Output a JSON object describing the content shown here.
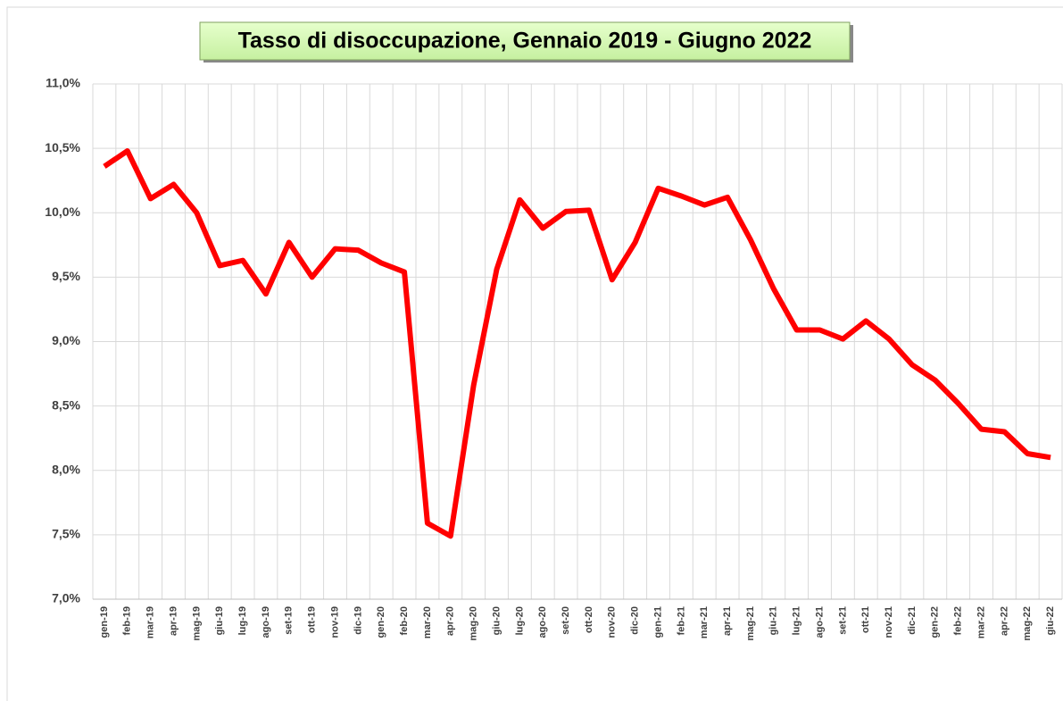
{
  "chart_data": {
    "type": "line",
    "title": "Tasso di disoccupazione, Gennaio 2019 - Giugno 2022",
    "categories": [
      "gen-19",
      "feb-19",
      "mar-19",
      "apr-19",
      "mag-19",
      "giu-19",
      "lug-19",
      "ago-19",
      "set-19",
      "ott-19",
      "nov-19",
      "dic-19",
      "gen-20",
      "feb-20",
      "mar-20",
      "apr-20",
      "mag-20",
      "giu-20",
      "lug-20",
      "ago-20",
      "set-20",
      "ott-20",
      "nov-20",
      "dic-20",
      "gen-21",
      "feb-21",
      "mar-21",
      "apr-21",
      "mag-21",
      "giu-21",
      "lug-21",
      "ago-21",
      "set-21",
      "ott-21",
      "nov-21",
      "dic-21",
      "gen-22",
      "feb-22",
      "mar-22",
      "apr-22",
      "mag-22",
      "giu-22"
    ],
    "series": [
      {
        "color": "#ff0000",
        "values": [
          10.36,
          10.48,
          10.11,
          10.22,
          10.0,
          9.59,
          9.63,
          9.37,
          9.77,
          9.5,
          9.72,
          9.71,
          9.61,
          9.54,
          7.59,
          7.49,
          8.66,
          9.56,
          10.1,
          9.88,
          10.01,
          10.02,
          9.48,
          9.77,
          10.19,
          10.13,
          10.06,
          10.12,
          9.79,
          9.41,
          9.09,
          9.09,
          9.02,
          9.16,
          9.02,
          8.82,
          8.7,
          8.52,
          8.32,
          8.3,
          8.13,
          8.1
        ]
      }
    ],
    "ylim": [
      7.0,
      11.0
    ],
    "yticks": [
      {
        "value": 7.0,
        "label": "7,0%"
      },
      {
        "value": 7.5,
        "label": "7,5%"
      },
      {
        "value": 8.0,
        "label": "8,0%"
      },
      {
        "value": 8.5,
        "label": "8,5%"
      },
      {
        "value": 9.0,
        "label": "9,0%"
      },
      {
        "value": 9.5,
        "label": "9,5%"
      },
      {
        "value": 10.0,
        "label": "10,0%"
      },
      {
        "value": 10.5,
        "label": "10,5%"
      },
      {
        "value": 11.0,
        "label": "11,0%"
      }
    ],
    "grid": true
  }
}
